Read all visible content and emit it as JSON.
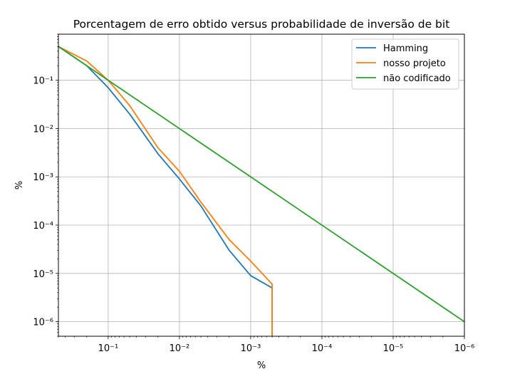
{
  "chart_data": {
    "type": "line",
    "title": "Porcentagem de erro obtido versus probabilidade de inversão de bit",
    "xlabel": "%",
    "ylabel": "%",
    "x_scale": "log",
    "y_scale": "log",
    "x_reversed": true,
    "xlim": [
      0.5,
      1e-06
    ],
    "ylim": [
      5e-07,
      0.9
    ],
    "x_ticks": [
      {
        "value": 0.1,
        "label": "10⁻¹"
      },
      {
        "value": 0.01,
        "label": "10⁻²"
      },
      {
        "value": 0.001,
        "label": "10⁻³"
      },
      {
        "value": 0.0001,
        "label": "10⁻⁴"
      },
      {
        "value": 1e-05,
        "label": "10⁻⁵"
      },
      {
        "value": 1e-06,
        "label": "10⁻⁶"
      }
    ],
    "y_ticks": [
      {
        "value": 0.1,
        "label": "10⁻¹"
      },
      {
        "value": 0.01,
        "label": "10⁻²"
      },
      {
        "value": 0.001,
        "label": "10⁻³"
      },
      {
        "value": 0.0001,
        "label": "10⁻⁴"
      },
      {
        "value": 1e-05,
        "label": "10⁻⁵"
      },
      {
        "value": 1e-06,
        "label": "10⁻⁶"
      }
    ],
    "grid": true,
    "legend_position": "top-right",
    "series": [
      {
        "name": "Hamming",
        "color": "#1f77b4",
        "x": [
          0.5,
          0.2,
          0.1,
          0.05,
          0.02,
          0.01,
          0.005,
          0.002,
          0.001,
          0.0005,
          0.0005
        ],
        "y": [
          0.5,
          0.2,
          0.07,
          0.02,
          0.003,
          0.0009,
          0.00025,
          3e-05,
          9e-06,
          5e-06,
          5e-07
        ]
      },
      {
        "name": "nosso projeto",
        "color": "#ff7f0e",
        "x": [
          0.5,
          0.2,
          0.1,
          0.05,
          0.02,
          0.01,
          0.005,
          0.002,
          0.001,
          0.0005,
          0.0005
        ],
        "y": [
          0.5,
          0.25,
          0.1,
          0.03,
          0.004,
          0.0013,
          0.0003,
          5e-05,
          1.8e-05,
          6e-06,
          5e-07
        ]
      },
      {
        "name": "não codificado",
        "color": "#2ca02c",
        "x": [
          0.5,
          1e-06
        ],
        "y": [
          0.5,
          1e-06
        ]
      }
    ]
  }
}
